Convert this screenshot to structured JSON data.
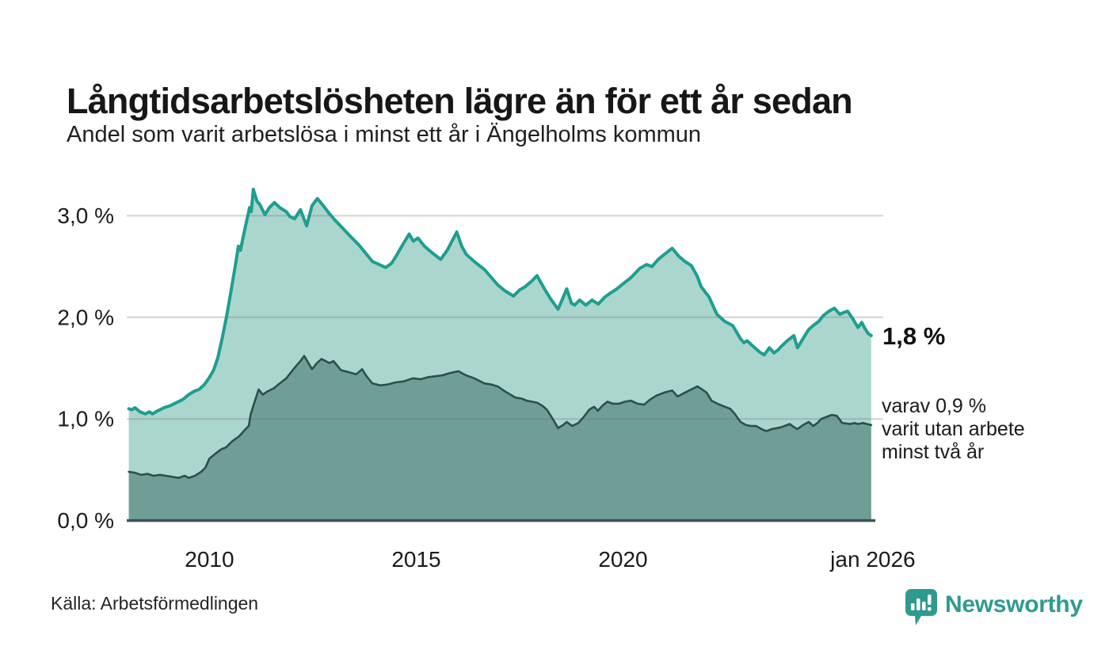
{
  "header": {
    "title": "Långtidsarbetslösheten lägre än för ett år sedan",
    "subtitle": "Andel som varit arbetslösa i minst ett år i Ängelholms kommun"
  },
  "annotations": {
    "latest_total_label": "1,8 %",
    "secondary_lines": [
      "varav 0,9 %",
      "varit utan arbete",
      "minst två år"
    ]
  },
  "footer": {
    "source": "Källa: Arbetsförmedlingen",
    "brand": "Newsworthy"
  },
  "colors": {
    "background": "#ffffff",
    "text": "#1a1a1a",
    "gridline": "#d9d9d9",
    "baseline": "#3d5156",
    "brand_teal": "#2e9b8e",
    "series_total_line": "#1e9e8f",
    "series_total_fill": "#abd6ce",
    "series_two_years_line": "#2d4f4b",
    "series_two_years_fill": "#6f9e97"
  },
  "chart_data": {
    "type": "area",
    "title": "Långtidsarbetslösheten lägre än för ett år sedan",
    "xlabel": "",
    "ylabel": "",
    "grid": true,
    "legend_position": "none",
    "xlim": [
      2008.0,
      2026.1
    ],
    "ylim": [
      0,
      3.3
    ],
    "y_ticks": [
      {
        "value": 0,
        "label": "0,0 %"
      },
      {
        "value": 1,
        "label": "1,0 %"
      },
      {
        "value": 2,
        "label": "2,0 %"
      },
      {
        "value": 3,
        "label": "3,0 %"
      }
    ],
    "x_ticks": [
      {
        "value": 2010,
        "label": "2010"
      },
      {
        "value": 2015,
        "label": "2015"
      },
      {
        "value": 2020,
        "label": "2020"
      },
      {
        "value": 2026.04,
        "label": "jan 2026"
      }
    ],
    "series": [
      {
        "name": "Arbetslösa minst ett år",
        "line_color": "#1e9e8f",
        "fill_color": "#abd6ce",
        "line_width": 4,
        "latest_value": "1,8 %",
        "points": [
          [
            2008.05,
            1.1
          ],
          [
            2008.12,
            1.09
          ],
          [
            2008.2,
            1.11
          ],
          [
            2008.32,
            1.07
          ],
          [
            2008.45,
            1.05
          ],
          [
            2008.55,
            1.07
          ],
          [
            2008.62,
            1.05
          ],
          [
            2008.75,
            1.08
          ],
          [
            2008.9,
            1.11
          ],
          [
            2009.05,
            1.13
          ],
          [
            2009.2,
            1.16
          ],
          [
            2009.35,
            1.19
          ],
          [
            2009.5,
            1.24
          ],
          [
            2009.62,
            1.27
          ],
          [
            2009.75,
            1.29
          ],
          [
            2009.88,
            1.34
          ],
          [
            2010.0,
            1.41
          ],
          [
            2010.1,
            1.48
          ],
          [
            2010.2,
            1.6
          ],
          [
            2010.3,
            1.78
          ],
          [
            2010.42,
            2.02
          ],
          [
            2010.53,
            2.28
          ],
          [
            2010.63,
            2.52
          ],
          [
            2010.7,
            2.7
          ],
          [
            2010.75,
            2.66
          ],
          [
            2010.82,
            2.8
          ],
          [
            2010.9,
            2.95
          ],
          [
            2010.97,
            3.08
          ],
          [
            2011.01,
            3.04
          ],
          [
            2011.06,
            3.26
          ],
          [
            2011.15,
            3.14
          ],
          [
            2011.22,
            3.11
          ],
          [
            2011.34,
            3.01
          ],
          [
            2011.45,
            3.08
          ],
          [
            2011.57,
            3.13
          ],
          [
            2011.7,
            3.08
          ],
          [
            2011.86,
            3.04
          ],
          [
            2011.95,
            2.99
          ],
          [
            2012.06,
            2.97
          ],
          [
            2012.2,
            3.06
          ],
          [
            2012.35,
            2.9
          ],
          [
            2012.48,
            3.1
          ],
          [
            2012.61,
            3.17
          ],
          [
            2012.75,
            3.1
          ],
          [
            2012.9,
            3.02
          ],
          [
            2013.05,
            2.95
          ],
          [
            2013.24,
            2.87
          ],
          [
            2013.45,
            2.78
          ],
          [
            2013.62,
            2.71
          ],
          [
            2013.8,
            2.62
          ],
          [
            2013.94,
            2.55
          ],
          [
            2014.1,
            2.52
          ],
          [
            2014.26,
            2.49
          ],
          [
            2014.4,
            2.53
          ],
          [
            2014.51,
            2.6
          ],
          [
            2014.65,
            2.7
          ],
          [
            2014.83,
            2.82
          ],
          [
            2014.93,
            2.75
          ],
          [
            2015.04,
            2.78
          ],
          [
            2015.2,
            2.7
          ],
          [
            2015.4,
            2.63
          ],
          [
            2015.59,
            2.57
          ],
          [
            2015.75,
            2.66
          ],
          [
            2015.98,
            2.84
          ],
          [
            2016.1,
            2.7
          ],
          [
            2016.21,
            2.62
          ],
          [
            2016.4,
            2.55
          ],
          [
            2016.65,
            2.47
          ],
          [
            2016.8,
            2.4
          ],
          [
            2016.97,
            2.32
          ],
          [
            2017.15,
            2.26
          ],
          [
            2017.35,
            2.21
          ],
          [
            2017.5,
            2.27
          ],
          [
            2017.63,
            2.3
          ],
          [
            2017.8,
            2.36
          ],
          [
            2017.92,
            2.41
          ],
          [
            2018.1,
            2.28
          ],
          [
            2018.25,
            2.18
          ],
          [
            2018.43,
            2.08
          ],
          [
            2018.64,
            2.28
          ],
          [
            2018.75,
            2.14
          ],
          [
            2018.83,
            2.12
          ],
          [
            2018.95,
            2.17
          ],
          [
            2019.1,
            2.12
          ],
          [
            2019.25,
            2.17
          ],
          [
            2019.4,
            2.13
          ],
          [
            2019.56,
            2.2
          ],
          [
            2019.7,
            2.24
          ],
          [
            2019.85,
            2.28
          ],
          [
            2020.0,
            2.33
          ],
          [
            2020.19,
            2.39
          ],
          [
            2020.4,
            2.48
          ],
          [
            2020.57,
            2.52
          ],
          [
            2020.7,
            2.5
          ],
          [
            2020.85,
            2.57
          ],
          [
            2021.0,
            2.62
          ],
          [
            2021.19,
            2.68
          ],
          [
            2021.35,
            2.6
          ],
          [
            2021.5,
            2.55
          ],
          [
            2021.65,
            2.51
          ],
          [
            2021.8,
            2.4
          ],
          [
            2021.89,
            2.3
          ],
          [
            2022.08,
            2.2
          ],
          [
            2022.27,
            2.03
          ],
          [
            2022.46,
            1.96
          ],
          [
            2022.65,
            1.92
          ],
          [
            2022.84,
            1.79
          ],
          [
            2022.92,
            1.75
          ],
          [
            2023.0,
            1.77
          ],
          [
            2023.16,
            1.71
          ],
          [
            2023.3,
            1.66
          ],
          [
            2023.41,
            1.63
          ],
          [
            2023.54,
            1.7
          ],
          [
            2023.65,
            1.65
          ],
          [
            2023.75,
            1.68
          ],
          [
            2023.84,
            1.72
          ],
          [
            2023.97,
            1.77
          ],
          [
            2024.13,
            1.82
          ],
          [
            2024.22,
            1.7
          ],
          [
            2024.35,
            1.79
          ],
          [
            2024.49,
            1.88
          ],
          [
            2024.6,
            1.92
          ],
          [
            2024.73,
            1.96
          ],
          [
            2024.85,
            2.02
          ],
          [
            2024.98,
            2.06
          ],
          [
            2025.11,
            2.09
          ],
          [
            2025.24,
            2.03
          ],
          [
            2025.35,
            2.05
          ],
          [
            2025.43,
            2.06
          ],
          [
            2025.55,
            1.99
          ],
          [
            2025.68,
            1.9
          ],
          [
            2025.77,
            1.95
          ],
          [
            2025.85,
            1.89
          ],
          [
            2025.93,
            1.84
          ],
          [
            2026.0,
            1.82
          ]
        ]
      },
      {
        "name": "Varav utan arbete minst två år",
        "line_color": "#2d4f4b",
        "fill_color": "#6f9e97",
        "line_width": 2.6,
        "latest_value": "0,9 %",
        "points": [
          [
            2008.05,
            0.48
          ],
          [
            2008.2,
            0.47
          ],
          [
            2008.35,
            0.45
          ],
          [
            2008.5,
            0.46
          ],
          [
            2008.65,
            0.44
          ],
          [
            2008.8,
            0.45
          ],
          [
            2008.95,
            0.44
          ],
          [
            2009.1,
            0.43
          ],
          [
            2009.25,
            0.42
          ],
          [
            2009.4,
            0.44
          ],
          [
            2009.5,
            0.42
          ],
          [
            2009.65,
            0.44
          ],
          [
            2009.8,
            0.48
          ],
          [
            2009.9,
            0.52
          ],
          [
            2010.0,
            0.61
          ],
          [
            2010.15,
            0.66
          ],
          [
            2010.28,
            0.7
          ],
          [
            2010.4,
            0.72
          ],
          [
            2010.55,
            0.78
          ],
          [
            2010.72,
            0.83
          ],
          [
            2010.85,
            0.89
          ],
          [
            2010.95,
            0.93
          ],
          [
            2011.0,
            1.05
          ],
          [
            2011.1,
            1.18
          ],
          [
            2011.19,
            1.29
          ],
          [
            2011.29,
            1.24
          ],
          [
            2011.4,
            1.27
          ],
          [
            2011.55,
            1.3
          ],
          [
            2011.67,
            1.34
          ],
          [
            2011.86,
            1.4
          ],
          [
            2012.05,
            1.5
          ],
          [
            2012.2,
            1.57
          ],
          [
            2012.29,
            1.62
          ],
          [
            2012.48,
            1.49
          ],
          [
            2012.6,
            1.55
          ],
          [
            2012.71,
            1.59
          ],
          [
            2012.9,
            1.55
          ],
          [
            2013.0,
            1.57
          ],
          [
            2013.18,
            1.48
          ],
          [
            2013.37,
            1.46
          ],
          [
            2013.55,
            1.44
          ],
          [
            2013.69,
            1.49
          ],
          [
            2013.8,
            1.42
          ],
          [
            2013.94,
            1.35
          ],
          [
            2014.13,
            1.33
          ],
          [
            2014.32,
            1.34
          ],
          [
            2014.5,
            1.36
          ],
          [
            2014.7,
            1.37
          ],
          [
            2014.92,
            1.4
          ],
          [
            2015.1,
            1.39
          ],
          [
            2015.27,
            1.41
          ],
          [
            2015.45,
            1.42
          ],
          [
            2015.64,
            1.43
          ],
          [
            2015.8,
            1.45
          ],
          [
            2016.02,
            1.47
          ],
          [
            2016.2,
            1.43
          ],
          [
            2016.4,
            1.4
          ],
          [
            2016.65,
            1.35
          ],
          [
            2016.8,
            1.34
          ],
          [
            2016.97,
            1.32
          ],
          [
            2017.15,
            1.27
          ],
          [
            2017.4,
            1.21
          ],
          [
            2017.55,
            1.2
          ],
          [
            2017.67,
            1.18
          ],
          [
            2017.92,
            1.16
          ],
          [
            2018.05,
            1.13
          ],
          [
            2018.16,
            1.09
          ],
          [
            2018.3,
            1.0
          ],
          [
            2018.43,
            0.91
          ],
          [
            2018.55,
            0.94
          ],
          [
            2018.64,
            0.97
          ],
          [
            2018.77,
            0.93
          ],
          [
            2018.92,
            0.96
          ],
          [
            2019.05,
            1.02
          ],
          [
            2019.18,
            1.09
          ],
          [
            2019.3,
            1.12
          ],
          [
            2019.39,
            1.08
          ],
          [
            2019.5,
            1.13
          ],
          [
            2019.62,
            1.17
          ],
          [
            2019.75,
            1.15
          ],
          [
            2019.9,
            1.15
          ],
          [
            2020.05,
            1.17
          ],
          [
            2020.19,
            1.18
          ],
          [
            2020.35,
            1.15
          ],
          [
            2020.51,
            1.14
          ],
          [
            2020.65,
            1.19
          ],
          [
            2020.81,
            1.23
          ],
          [
            2021.0,
            1.26
          ],
          [
            2021.19,
            1.28
          ],
          [
            2021.32,
            1.22
          ],
          [
            2021.5,
            1.26
          ],
          [
            2021.65,
            1.29
          ],
          [
            2021.8,
            1.32
          ],
          [
            2022.02,
            1.26
          ],
          [
            2022.14,
            1.18
          ],
          [
            2022.28,
            1.15
          ],
          [
            2022.4,
            1.13
          ],
          [
            2022.59,
            1.1
          ],
          [
            2022.7,
            1.05
          ],
          [
            2022.84,
            0.97
          ],
          [
            2022.97,
            0.94
          ],
          [
            2023.1,
            0.93
          ],
          [
            2023.22,
            0.93
          ],
          [
            2023.35,
            0.9
          ],
          [
            2023.46,
            0.88
          ],
          [
            2023.6,
            0.9
          ],
          [
            2023.73,
            0.91
          ],
          [
            2023.84,
            0.92
          ],
          [
            2024.03,
            0.95
          ],
          [
            2024.13,
            0.92
          ],
          [
            2024.22,
            0.9
          ],
          [
            2024.35,
            0.94
          ],
          [
            2024.49,
            0.97
          ],
          [
            2024.6,
            0.93
          ],
          [
            2024.7,
            0.96
          ],
          [
            2024.79,
            1.0
          ],
          [
            2024.92,
            1.02
          ],
          [
            2025.05,
            1.04
          ],
          [
            2025.17,
            1.03
          ],
          [
            2025.3,
            0.96
          ],
          [
            2025.49,
            0.95
          ],
          [
            2025.6,
            0.96
          ],
          [
            2025.68,
            0.95
          ],
          [
            2025.8,
            0.96
          ],
          [
            2025.9,
            0.95
          ],
          [
            2026.0,
            0.94
          ]
        ]
      }
    ]
  }
}
